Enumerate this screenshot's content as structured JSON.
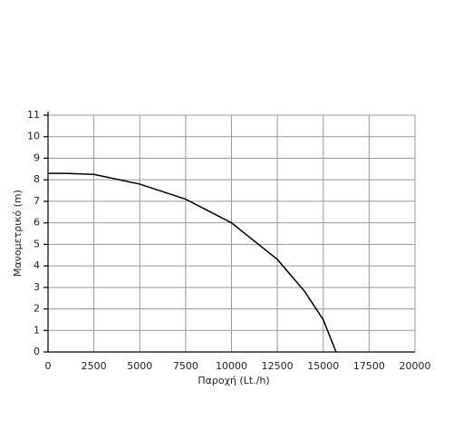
{
  "chart_data": {
    "type": "line",
    "x_label": "Παροχή (Lt./h)",
    "y_label": "Μανομετρικό  (m)",
    "x": [
      0,
      1000,
      2500,
      5000,
      7500,
      10000,
      12500,
      14000,
      15000,
      15700
    ],
    "series": [
      {
        "color": "#000000",
        "values": [
          8.3,
          8.3,
          8.25,
          7.8,
          7.1,
          6.0,
          4.3,
          2.8,
          1.5,
          0
        ]
      }
    ],
    "xlim": [
      0,
      20000
    ],
    "xticks": [
      0,
      2500,
      5000,
      7500,
      10000,
      12500,
      15000,
      17500,
      20000
    ],
    "ylim": [
      0,
      11
    ],
    "yticks": [
      0,
      1,
      2,
      3,
      4,
      5,
      6,
      7,
      8,
      9,
      10,
      11
    ],
    "grid": true
  }
}
